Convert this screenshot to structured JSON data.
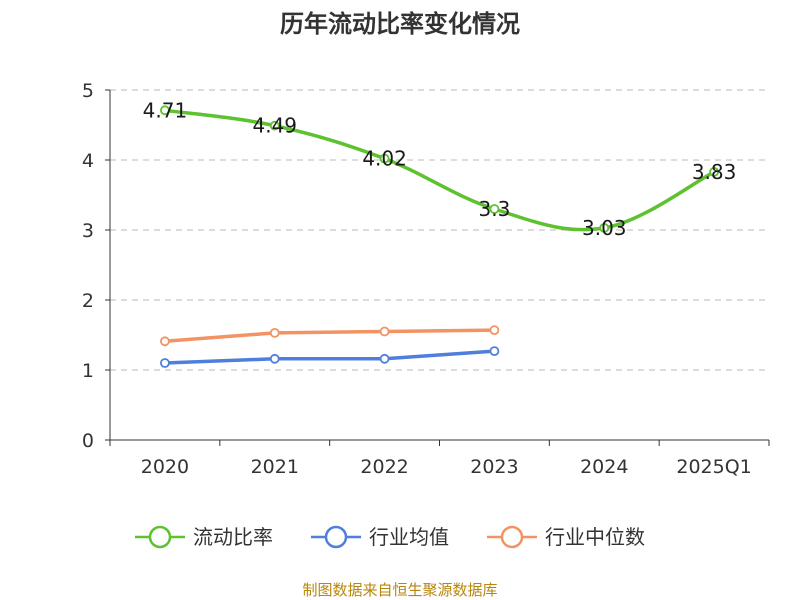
{
  "chart_data": {
    "type": "line",
    "title": "历年流动比率变化情况",
    "categories": [
      "2020",
      "2021",
      "2022",
      "2023",
      "2024",
      "2025Q1"
    ],
    "ylim": [
      0,
      5
    ],
    "yticks": [
      "0",
      "1",
      "2",
      "3",
      "4",
      "5"
    ],
    "grid": true,
    "legend_position": "bottom",
    "series": [
      {
        "name": "流动比率",
        "color": "#5ec12f",
        "values": [
          4.71,
          4.49,
          4.02,
          3.3,
          3.03,
          3.83
        ],
        "labels": [
          "4.71",
          "4.49",
          "4.02",
          "3.3",
          "3.03",
          "3.83"
        ]
      },
      {
        "name": "行业均值",
        "color": "#4f7fdd",
        "values": [
          1.1,
          1.16,
          1.16,
          1.27,
          null,
          null
        ]
      },
      {
        "name": "行业中位数",
        "color": "#f39263",
        "values": [
          1.41,
          1.53,
          1.55,
          1.57,
          null,
          null
        ]
      }
    ]
  },
  "footer": {
    "source_note": "制图数据来自恒生聚源数据库"
  }
}
